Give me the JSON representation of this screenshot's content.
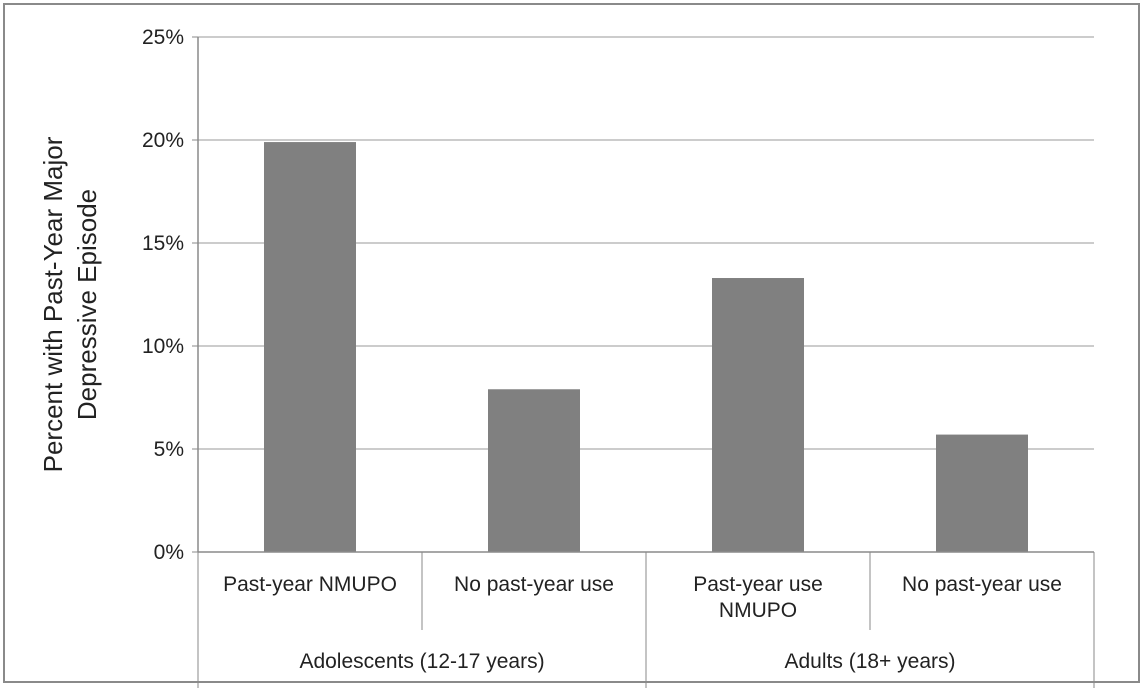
{
  "chart_data": {
    "type": "bar",
    "ylabel": [
      "Percent with Past-Year Major",
      "Depressive Episode"
    ],
    "ylim": [
      0,
      25
    ],
    "yticks": [
      0,
      5,
      10,
      15,
      20,
      25
    ],
    "ytick_labels": [
      "0%",
      "5%",
      "10%",
      "15%",
      "20%",
      "25%"
    ],
    "grid": true,
    "bar_color": "#808080",
    "categories": [
      [
        "Past-year NMUPO"
      ],
      [
        "No past-year use"
      ],
      [
        "Past-year use",
        "NMUPO"
      ],
      [
        "No past-year use"
      ]
    ],
    "values": [
      19.9,
      7.9,
      13.3,
      5.7
    ],
    "groups": [
      {
        "label": "Adolescents (12-17 years)",
        "span": [
          0,
          1
        ]
      },
      {
        "label": "Adults (18+ years)",
        "span": [
          2,
          3
        ]
      }
    ]
  }
}
